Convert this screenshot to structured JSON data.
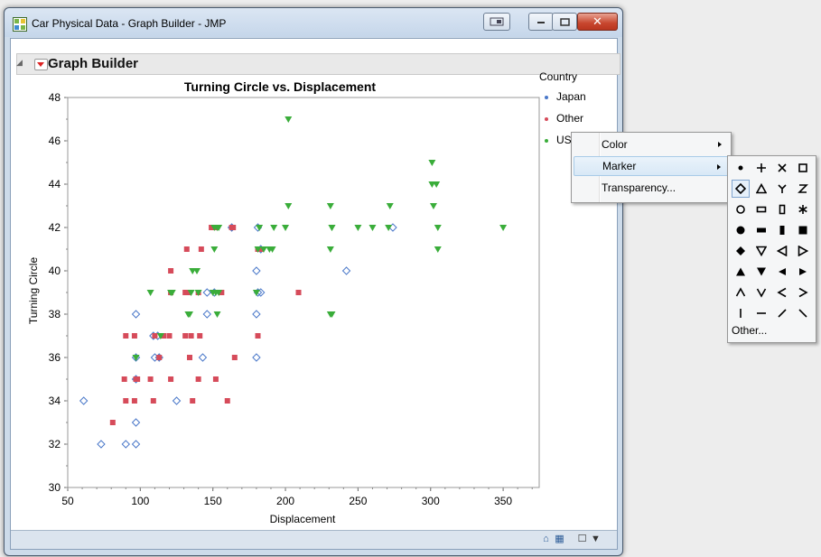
{
  "window": {
    "title": "Car Physical Data - Graph Builder - JMP",
    "controls": {
      "minimize": "–",
      "maximize": "□",
      "close": "✕"
    }
  },
  "outline": {
    "title": "Graph Builder"
  },
  "chart_data": {
    "type": "scatter",
    "title": "Turning Circle vs. Displacement",
    "xlabel": "Displacement",
    "ylabel": "Turning Circle",
    "xlim": [
      50,
      375
    ],
    "ylim": [
      30,
      48
    ],
    "xticks": [
      "50",
      "100",
      "150",
      "200",
      "250",
      "300",
      "350"
    ],
    "yticks": [
      "30",
      "32",
      "34",
      "36",
      "38",
      "40",
      "42",
      "44",
      "46",
      "48"
    ],
    "legend_title": "Country",
    "legend_position": "right",
    "series": [
      {
        "name": "Japan",
        "color": "#4a78c9",
        "marker": "diamond-open",
        "points": [
          [
            61,
            34
          ],
          [
            73,
            32
          ],
          [
            90,
            32
          ],
          [
            97,
            32
          ],
          [
            97,
            33
          ],
          [
            97,
            38
          ],
          [
            97,
            35
          ],
          [
            97,
            36
          ],
          [
            109,
            37
          ],
          [
            112,
            37
          ],
          [
            113,
            36
          ],
          [
            110,
            36
          ],
          [
            125,
            34
          ],
          [
            146,
            39
          ],
          [
            143,
            36
          ],
          [
            146,
            38
          ],
          [
            151,
            39
          ],
          [
            180,
            40
          ],
          [
            180,
            38
          ],
          [
            181,
            39
          ],
          [
            183,
            39
          ],
          [
            180,
            36
          ],
          [
            181,
            42
          ],
          [
            183,
            41
          ],
          [
            242,
            40
          ],
          [
            274,
            42
          ],
          [
            163,
            42
          ]
        ]
      },
      {
        "name": "Other",
        "color": "#d64b5a",
        "marker": "square",
        "points": [
          [
            81,
            33
          ],
          [
            89,
            35
          ],
          [
            90,
            34
          ],
          [
            90,
            37
          ],
          [
            96,
            37
          ],
          [
            97,
            35
          ],
          [
            96,
            34
          ],
          [
            98,
            35
          ],
          [
            107,
            35
          ],
          [
            109,
            34
          ],
          [
            110,
            37
          ],
          [
            113,
            36
          ],
          [
            116,
            37
          ],
          [
            120,
            37
          ],
          [
            121,
            35
          ],
          [
            121,
            39
          ],
          [
            121,
            40
          ],
          [
            131,
            37
          ],
          [
            131,
            39
          ],
          [
            132,
            41
          ],
          [
            133,
            39
          ],
          [
            134,
            36
          ],
          [
            135,
            37
          ],
          [
            136,
            34
          ],
          [
            140,
            39
          ],
          [
            140,
            35
          ],
          [
            141,
            37
          ],
          [
            142,
            41
          ],
          [
            149,
            42
          ],
          [
            152,
            42
          ],
          [
            152,
            35
          ],
          [
            156,
            39
          ],
          [
            160,
            34
          ],
          [
            163,
            42
          ],
          [
            164,
            42
          ],
          [
            165,
            36
          ],
          [
            181,
            37
          ],
          [
            181,
            41
          ],
          [
            183,
            41
          ],
          [
            209,
            39
          ]
        ]
      },
      {
        "name": "USA",
        "color": "#3aad3a",
        "marker": "triangle-down",
        "points": [
          [
            97,
            36
          ],
          [
            107,
            39
          ],
          [
            114,
            37
          ],
          [
            121,
            39
          ],
          [
            122,
            39
          ],
          [
            133,
            38
          ],
          [
            134,
            38
          ],
          [
            135,
            39
          ],
          [
            136,
            40
          ],
          [
            139,
            40
          ],
          [
            140,
            39
          ],
          [
            150,
            39
          ],
          [
            151,
            42
          ],
          [
            151,
            41
          ],
          [
            152,
            39
          ],
          [
            153,
            42
          ],
          [
            153,
            38
          ],
          [
            154,
            39
          ],
          [
            154,
            42
          ],
          [
            180,
            39
          ],
          [
            181,
            41
          ],
          [
            182,
            42
          ],
          [
            185,
            41
          ],
          [
            189,
            41
          ],
          [
            191,
            41
          ],
          [
            192,
            42
          ],
          [
            200,
            42
          ],
          [
            202,
            47
          ],
          [
            202,
            43
          ],
          [
            231,
            41
          ],
          [
            231,
            43
          ],
          [
            231,
            38
          ],
          [
            232,
            42
          ],
          [
            232,
            42
          ],
          [
            232,
            38
          ],
          [
            250,
            42
          ],
          [
            260,
            42
          ],
          [
            271,
            42
          ],
          [
            272,
            43
          ],
          [
            301,
            45
          ],
          [
            301,
            44
          ],
          [
            302,
            43
          ],
          [
            304,
            44
          ],
          [
            305,
            42
          ],
          [
            305,
            41
          ],
          [
            350,
            42
          ]
        ]
      }
    ]
  },
  "context_menu": {
    "items": [
      {
        "label": "Color",
        "has_submenu": true
      },
      {
        "label": "Marker",
        "has_submenu": true
      },
      {
        "label": "Transparency...",
        "has_submenu": false
      }
    ]
  },
  "marker_menu": {
    "other_label": "Other...",
    "rows": [
      [
        "dot",
        "plus",
        "x",
        "square-open"
      ],
      [
        "diamond-open",
        "triangle-open",
        "y",
        "z"
      ],
      [
        "circle-open",
        "rect-h-open",
        "rect-v-open",
        "asterisk"
      ],
      [
        "circle",
        "rect-h",
        "rect-v",
        "square"
      ],
      [
        "diamond",
        "triangle-down-open",
        "triangle-left-open",
        "triangle-right-open"
      ],
      [
        "triangle-up",
        "triangle-down",
        "triangle-left",
        "triangle-right"
      ],
      [
        "caret-up",
        "caret-down",
        "caret-left",
        "caret-right"
      ],
      [
        "vline",
        "hline",
        "slash",
        "backslash"
      ]
    ],
    "selected": "diamond-open"
  }
}
